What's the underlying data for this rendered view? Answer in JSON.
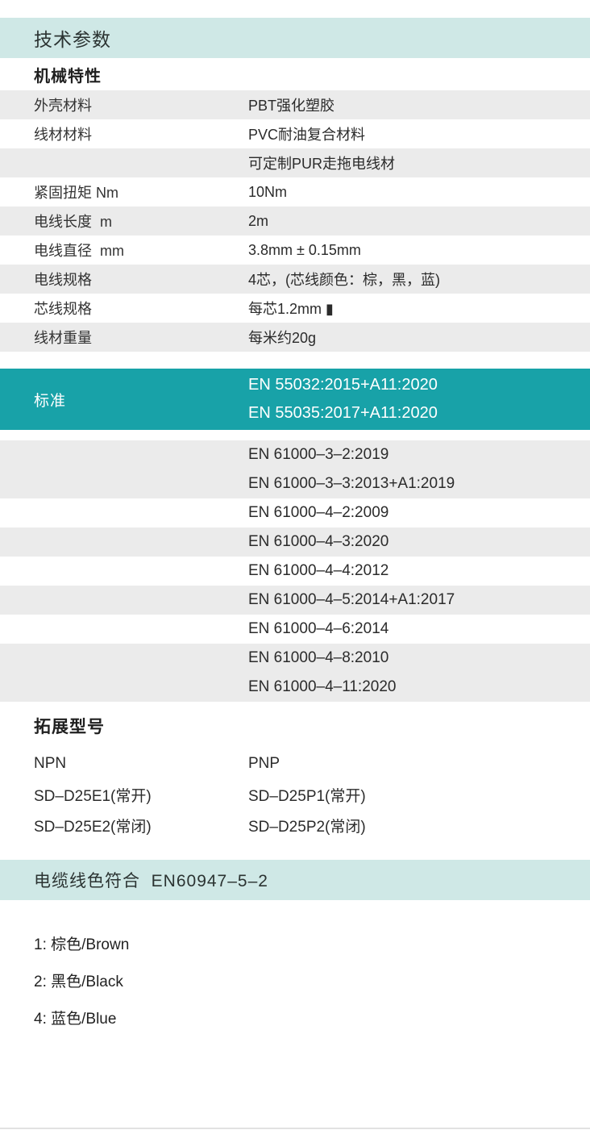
{
  "colors": {
    "accent_teal": "#18a2a8",
    "light_teal": "#cfe8e6",
    "row_gray": "#ebebeb"
  },
  "header": {
    "title": "技术参数"
  },
  "mechanical": {
    "heading": "机械特性",
    "rows": [
      {
        "label": "外壳材料",
        "value": "PBT强化塑胶"
      },
      {
        "label": "线材材料",
        "value": "PVC耐油复合材料"
      },
      {
        "label": "",
        "value": "可定制PUR走拖电线材"
      },
      {
        "label": "紧固扭矩 Nm",
        "value": "10Nm"
      },
      {
        "label": "电线长度  m",
        "value": "2m"
      },
      {
        "label": "电线直径  mm",
        "value": "3.8mm ± 0.15mm"
      },
      {
        "label": "电线规格",
        "value": "4芯，(芯线颜色：棕，黑，蓝)"
      },
      {
        "label": "芯线规格",
        "value": "每芯1.2mm ▮"
      },
      {
        "label": "线材重量",
        "value": "每米约20g"
      }
    ]
  },
  "standards": {
    "label": "标准",
    "highlighted": [
      "EN 55032:2015+A11:2020",
      "EN 55035:2017+A11:2020"
    ],
    "blocks": [
      {
        "lines": [
          "EN 61000–3–2:2019",
          "EN 61000–3–3:2013+A1:2019"
        ]
      },
      {
        "lines": [
          "EN 61000–4–2:2009"
        ]
      },
      {
        "lines": [
          "EN 61000–4–3:2020"
        ]
      },
      {
        "lines": [
          "EN 61000–4–4:2012"
        ]
      },
      {
        "lines": [
          "EN 61000–4–5:2014+A1:2017"
        ]
      },
      {
        "lines": [
          "EN 61000–4–6:2014"
        ]
      },
      {
        "lines": [
          "EN 61000–4–8:2010",
          "EN 61000–4–11:2020"
        ]
      }
    ]
  },
  "extended_models": {
    "heading": "拓展型号",
    "rows": [
      {
        "left": "NPN",
        "right": "PNP"
      },
      {
        "left": "SD–D25E1(常开)",
        "right": "SD–D25P1(常开)"
      },
      {
        "left": "SD–D25E2(常闭)",
        "right": "SD–D25P2(常闭)"
      }
    ]
  },
  "cable_colors": {
    "heading": "电缆线色符合  EN60947–5–2",
    "items": [
      "1: 棕色/Brown",
      "2: 黑色/Black",
      "4: 蓝色/Blue"
    ]
  }
}
